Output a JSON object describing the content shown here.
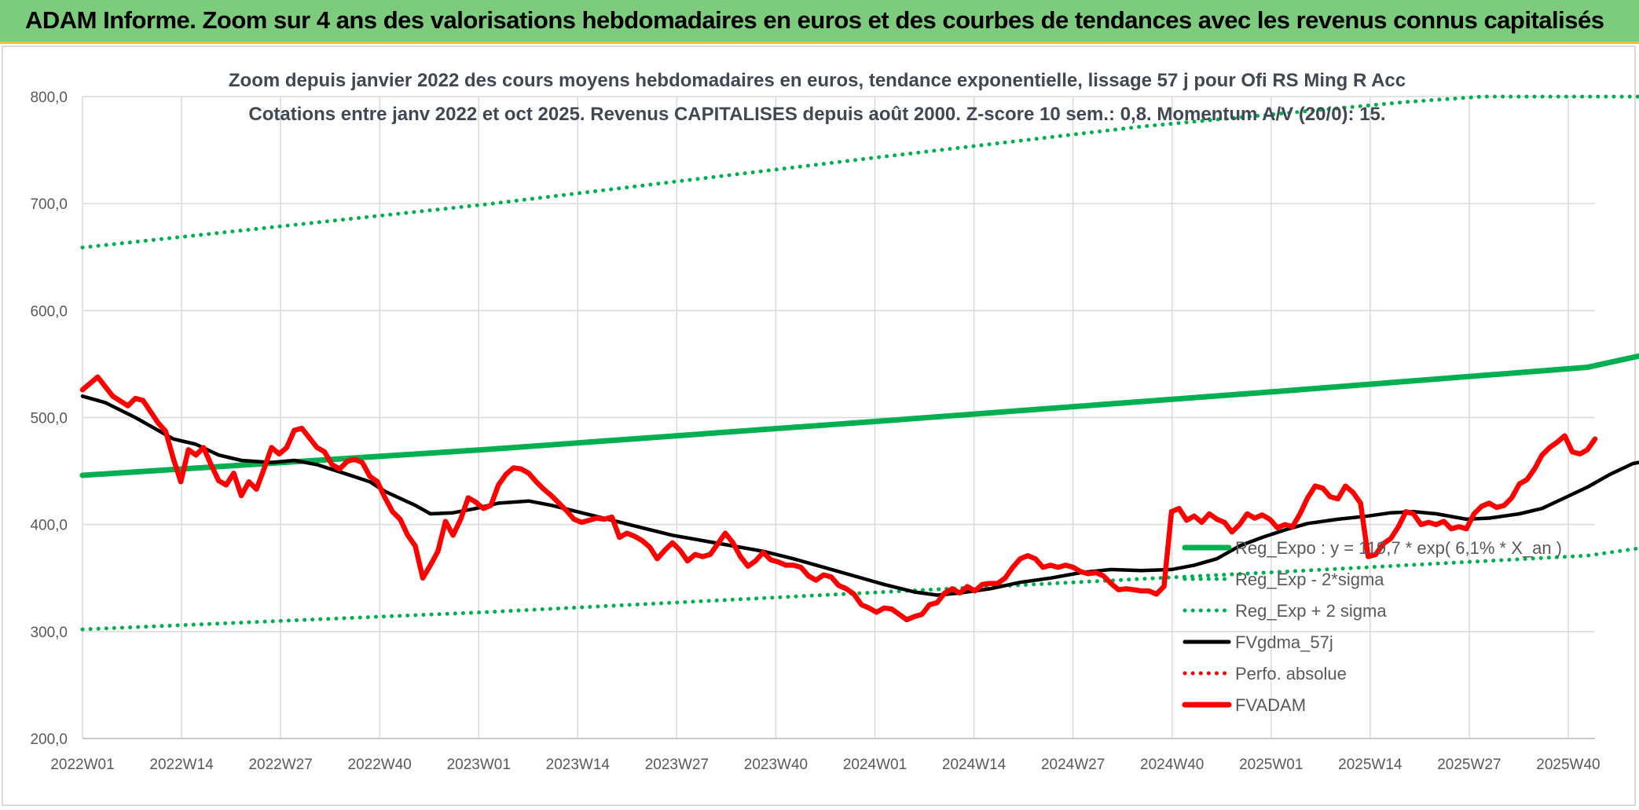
{
  "banner": {
    "title": "ADAM Informe. Zoom sur 4 ans des valorisations hebdomadaires en euros et des courbes de tendances avec les revenus connus capitalisés"
  },
  "chart_data": {
    "type": "line",
    "title": "Zoom depuis janvier 2022 des cours moyens hebdomadaires en euros, tendance exponentielle, lissage 57 j pour Ofi RS Ming R Acc",
    "subtitle": "Cotations entre janv 2022 et oct 2025. Revenus CAPITALISES depuis août 2000. Z-score 10 sem.: 0,8. Momentum A/V (20/0): 15.",
    "xlabel": "",
    "ylabel": "",
    "ylim": [
      200,
      800
    ],
    "yticks": [
      "800,0",
      "700,0",
      "600,0",
      "500,0",
      "400,0",
      "300,0",
      "200,0"
    ],
    "xticks": [
      "2022W01",
      "2022W14",
      "2022W27",
      "2022W40",
      "2023W01",
      "2023W14",
      "2023W27",
      "2023W40",
      "2024W01",
      "2024W14",
      "2024W27",
      "2024W40",
      "2025W01",
      "2025W14",
      "2025W27",
      "2025W40"
    ],
    "grid": true,
    "legend_position": "right",
    "series": [
      {
        "name": "Reg_Expo : y = 119,7 * exp( 6,1% * X_an )",
        "color": "#00b050",
        "style": "solid",
        "values": [
          [
            0,
            446
          ],
          [
            53,
            470
          ],
          [
            106,
            497
          ],
          [
            159,
            525
          ],
          [
            199,
            547
          ],
          [
            210,
            564
          ]
        ]
      },
      {
        "name": "Reg_Exp - 2*sigma",
        "color": "#00b050",
        "style": "dotted",
        "values": [
          [
            0,
            302
          ],
          [
            53,
            318
          ],
          [
            106,
            337
          ],
          [
            159,
            356
          ],
          [
            199,
            371
          ],
          [
            210,
            382
          ]
        ]
      },
      {
        "name": "Reg_Exp + 2 sigma",
        "color": "#00b050",
        "style": "dotted",
        "values": [
          [
            0,
            659
          ],
          [
            53,
            699
          ],
          [
            106,
            744
          ],
          [
            140,
            772
          ],
          [
            175,
            795
          ],
          [
            185,
            800
          ],
          [
            210,
            800
          ]
        ]
      },
      {
        "name": "FVgdma_57j",
        "color": "#000000",
        "style": "solid",
        "values": [
          [
            0,
            520
          ],
          [
            3,
            514
          ],
          [
            7,
            500
          ],
          [
            10,
            488
          ],
          [
            12,
            480
          ],
          [
            15,
            475
          ],
          [
            18,
            465
          ],
          [
            21,
            460
          ],
          [
            25,
            458
          ],
          [
            28,
            460
          ],
          [
            31,
            456
          ],
          [
            35,
            447
          ],
          [
            38,
            440
          ],
          [
            40,
            431
          ],
          [
            44,
            418
          ],
          [
            46,
            410
          ],
          [
            49,
            411
          ],
          [
            52,
            415
          ],
          [
            55,
            420
          ],
          [
            59,
            422
          ],
          [
            62,
            418
          ],
          [
            66,
            411
          ],
          [
            70,
            404
          ],
          [
            74,
            397
          ],
          [
            78,
            390
          ],
          [
            82,
            385
          ],
          [
            86,
            380
          ],
          [
            90,
            375
          ],
          [
            94,
            368
          ],
          [
            98,
            360
          ],
          [
            102,
            352
          ],
          [
            106,
            344
          ],
          [
            110,
            337
          ],
          [
            113,
            334
          ],
          [
            116,
            336
          ],
          [
            120,
            340
          ],
          [
            124,
            346
          ],
          [
            128,
            350
          ],
          [
            132,
            355
          ],
          [
            136,
            358
          ],
          [
            140,
            357
          ],
          [
            144,
            358
          ],
          [
            147,
            362
          ],
          [
            150,
            368
          ],
          [
            153,
            380
          ],
          [
            156,
            388
          ],
          [
            159,
            395
          ],
          [
            162,
            401
          ],
          [
            166,
            405
          ],
          [
            170,
            408
          ],
          [
            173,
            411
          ],
          [
            176,
            412
          ],
          [
            179,
            410
          ],
          [
            183,
            405
          ],
          [
            186,
            406
          ],
          [
            190,
            410
          ],
          [
            193,
            415
          ],
          [
            196,
            425
          ],
          [
            199,
            435
          ],
          [
            202,
            447
          ],
          [
            205,
            457
          ],
          [
            208,
            461
          ],
          [
            210,
            465
          ]
        ]
      },
      {
        "name": "Perfo. absolue",
        "color": "#ff0000",
        "style": "dotted",
        "values": []
      },
      {
        "name": "FVADAM",
        "color": "#ff0000",
        "style": "solid",
        "values": [
          [
            0,
            526
          ],
          [
            2,
            538
          ],
          [
            4,
            520
          ],
          [
            6,
            511
          ],
          [
            7,
            518
          ],
          [
            8,
            516
          ],
          [
            10,
            495
          ],
          [
            11,
            487
          ],
          [
            12,
            462
          ],
          [
            13,
            440
          ],
          [
            14,
            470
          ],
          [
            15,
            465
          ],
          [
            16,
            472
          ],
          [
            17,
            456
          ],
          [
            18,
            441
          ],
          [
            19,
            437
          ],
          [
            20,
            448
          ],
          [
            21,
            427
          ],
          [
            22,
            440
          ],
          [
            23,
            433
          ],
          [
            24,
            452
          ],
          [
            25,
            472
          ],
          [
            26,
            466
          ],
          [
            27,
            472
          ],
          [
            28,
            488
          ],
          [
            29,
            490
          ],
          [
            30,
            481
          ],
          [
            31,
            472
          ],
          [
            32,
            468
          ],
          [
            33,
            456
          ],
          [
            34,
            452
          ],
          [
            35,
            459
          ],
          [
            36,
            461
          ],
          [
            37,
            458
          ],
          [
            38,
            445
          ],
          [
            39,
            440
          ],
          [
            40,
            425
          ],
          [
            41,
            412
          ],
          [
            42,
            405
          ],
          [
            43,
            390
          ],
          [
            44,
            380
          ],
          [
            45,
            350
          ],
          [
            46,
            362
          ],
          [
            47,
            375
          ],
          [
            48,
            403
          ],
          [
            49,
            390
          ],
          [
            50,
            405
          ],
          [
            51,
            425
          ],
          [
            52,
            421
          ],
          [
            53,
            415
          ],
          [
            54,
            418
          ],
          [
            55,
            437
          ],
          [
            56,
            447
          ],
          [
            57,
            453
          ],
          [
            58,
            452
          ],
          [
            59,
            448
          ],
          [
            60,
            440
          ],
          [
            61,
            433
          ],
          [
            62,
            427
          ],
          [
            63,
            420
          ],
          [
            64,
            413
          ],
          [
            65,
            405
          ],
          [
            66,
            402
          ],
          [
            67,
            404
          ],
          [
            68,
            406
          ],
          [
            69,
            405
          ],
          [
            70,
            407
          ],
          [
            71,
            388
          ],
          [
            72,
            392
          ],
          [
            73,
            389
          ],
          [
            74,
            385
          ],
          [
            75,
            379
          ],
          [
            76,
            368
          ],
          [
            77,
            376
          ],
          [
            78,
            383
          ],
          [
            79,
            376
          ],
          [
            80,
            366
          ],
          [
            81,
            372
          ],
          [
            82,
            370
          ],
          [
            83,
            372
          ],
          [
            84,
            382
          ],
          [
            85,
            392
          ],
          [
            86,
            383
          ],
          [
            87,
            370
          ],
          [
            88,
            361
          ],
          [
            89,
            366
          ],
          [
            90,
            374
          ],
          [
            91,
            367
          ],
          [
            92,
            365
          ],
          [
            93,
            362
          ],
          [
            94,
            362
          ],
          [
            95,
            360
          ],
          [
            96,
            352
          ],
          [
            97,
            348
          ],
          [
            98,
            353
          ],
          [
            99,
            351
          ],
          [
            100,
            343
          ],
          [
            101,
            340
          ],
          [
            102,
            335
          ],
          [
            103,
            325
          ],
          [
            104,
            322
          ],
          [
            105,
            318
          ],
          [
            106,
            322
          ],
          [
            107,
            321
          ],
          [
            108,
            316
          ],
          [
            109,
            311
          ],
          [
            110,
            314
          ],
          [
            111,
            316
          ],
          [
            112,
            325
          ],
          [
            113,
            327
          ],
          [
            114,
            336
          ],
          [
            115,
            340
          ],
          [
            116,
            336
          ],
          [
            117,
            342
          ],
          [
            118,
            338
          ],
          [
            119,
            344
          ],
          [
            120,
            345
          ],
          [
            121,
            345
          ],
          [
            122,
            350
          ],
          [
            123,
            360
          ],
          [
            124,
            368
          ],
          [
            125,
            371
          ],
          [
            126,
            368
          ],
          [
            127,
            360
          ],
          [
            128,
            362
          ],
          [
            129,
            360
          ],
          [
            130,
            362
          ],
          [
            131,
            360
          ],
          [
            132,
            356
          ],
          [
            133,
            354
          ],
          [
            134,
            355
          ],
          [
            135,
            352
          ],
          [
            136,
            345
          ],
          [
            137,
            339
          ],
          [
            138,
            340
          ],
          [
            139,
            339
          ],
          [
            140,
            338
          ],
          [
            141,
            338
          ],
          [
            142,
            335
          ],
          [
            143,
            342
          ],
          [
            144,
            412
          ],
          [
            145,
            415
          ],
          [
            146,
            404
          ],
          [
            147,
            408
          ],
          [
            148,
            402
          ],
          [
            149,
            410
          ],
          [
            150,
            405
          ],
          [
            151,
            402
          ],
          [
            152,
            393
          ],
          [
            153,
            400
          ],
          [
            154,
            410
          ],
          [
            155,
            406
          ],
          [
            156,
            409
          ],
          [
            157,
            405
          ],
          [
            158,
            397
          ],
          [
            159,
            400
          ],
          [
            160,
            398
          ],
          [
            161,
            410
          ],
          [
            162,
            425
          ],
          [
            163,
            436
          ],
          [
            164,
            434
          ],
          [
            165,
            426
          ],
          [
            166,
            424
          ],
          [
            167,
            436
          ],
          [
            168,
            430
          ],
          [
            169,
            420
          ],
          [
            170,
            370
          ],
          [
            171,
            372
          ],
          [
            172,
            382
          ],
          [
            173,
            387
          ],
          [
            174,
            398
          ],
          [
            175,
            412
          ],
          [
            176,
            410
          ],
          [
            177,
            400
          ],
          [
            178,
            402
          ],
          [
            179,
            400
          ],
          [
            180,
            403
          ],
          [
            181,
            396
          ],
          [
            182,
            398
          ],
          [
            183,
            396
          ],
          [
            184,
            410
          ],
          [
            185,
            417
          ],
          [
            186,
            420
          ],
          [
            187,
            416
          ],
          [
            188,
            418
          ],
          [
            189,
            425
          ],
          [
            190,
            438
          ],
          [
            191,
            442
          ],
          [
            192,
            452
          ],
          [
            193,
            465
          ],
          [
            194,
            472
          ],
          [
            195,
            477
          ],
          [
            196,
            483
          ],
          [
            197,
            468
          ],
          [
            198,
            466
          ],
          [
            199,
            470
          ],
          [
            200,
            480
          ]
        ]
      }
    ]
  }
}
